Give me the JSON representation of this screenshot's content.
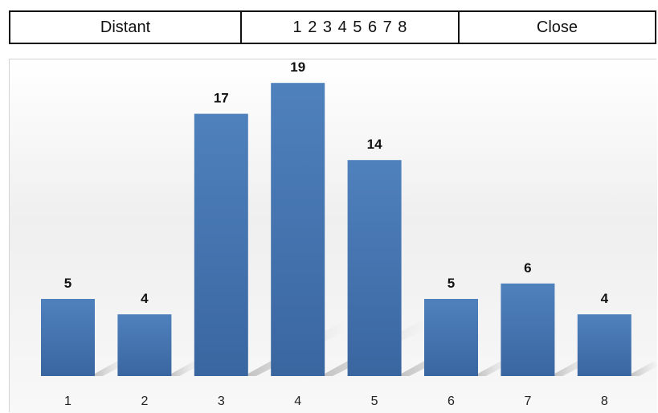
{
  "scale": {
    "left_label": "Distant",
    "numbers": "1 2 3 4 5 6 7 8",
    "right_label": "Close"
  },
  "chart_data": {
    "type": "bar",
    "categories": [
      "1",
      "2",
      "3",
      "4",
      "5",
      "6",
      "7",
      "8"
    ],
    "values": [
      5,
      4,
      17,
      19,
      14,
      5,
      6,
      4
    ],
    "ylim": [
      0,
      20
    ],
    "grid": false,
    "legend": "none",
    "bar_color": "#4f81bd",
    "bar_color_dark": "#3a66a0"
  }
}
